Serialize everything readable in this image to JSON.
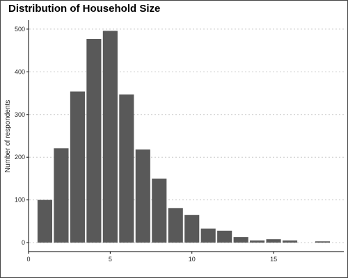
{
  "chart_data": {
    "type": "bar",
    "title": "Distribution of Household Size",
    "xlabel": "",
    "ylabel": "Number of respondents",
    "x": [
      1,
      2,
      3,
      4,
      5,
      6,
      7,
      8,
      9,
      10,
      11,
      12,
      13,
      14,
      15,
      16,
      18
    ],
    "values": [
      100,
      221,
      354,
      477,
      496,
      347,
      218,
      150,
      81,
      65,
      33,
      28,
      13,
      5,
      8,
      5,
      3
    ],
    "xlim": [
      0,
      19.3
    ],
    "ylim": [
      -21,
      521
    ],
    "x_ticks": [
      0,
      5,
      10,
      15
    ],
    "y_ticks": [
      0,
      100,
      200,
      300,
      400,
      500
    ],
    "grid": "horizontal dotted",
    "bar_color": "#595959",
    "legend": "none"
  }
}
